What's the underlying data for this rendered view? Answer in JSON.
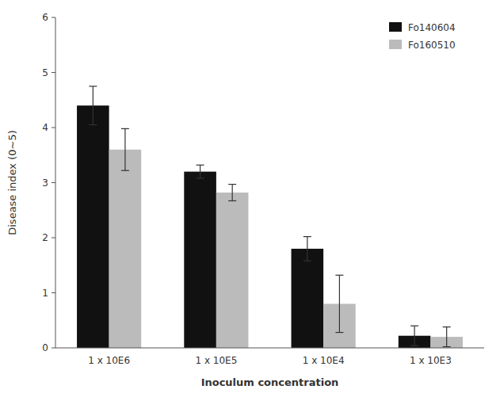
{
  "chart_data": {
    "type": "bar",
    "categories": [
      "1 x 10E6",
      "1 x 10E5",
      "1 x 10E4",
      "1 x 10E3"
    ],
    "series": [
      {
        "name": "Fo140604",
        "color": "#111111",
        "values": [
          4.4,
          3.2,
          1.8,
          0.22
        ],
        "errors": [
          0.35,
          0.12,
          0.22,
          0.18
        ]
      },
      {
        "name": "Fo160510",
        "color": "#bbbbbb",
        "values": [
          3.6,
          2.82,
          0.8,
          0.2
        ],
        "errors": [
          0.38,
          0.15,
          0.52,
          0.18
        ]
      }
    ],
    "xlabel": "Inoculum concentration",
    "ylabel": "Disease index (0~5)",
    "ylim": [
      0,
      6
    ],
    "yticks": [
      0,
      1,
      2,
      3,
      4,
      5,
      6
    ],
    "grid": false,
    "legend": "upper right"
  }
}
